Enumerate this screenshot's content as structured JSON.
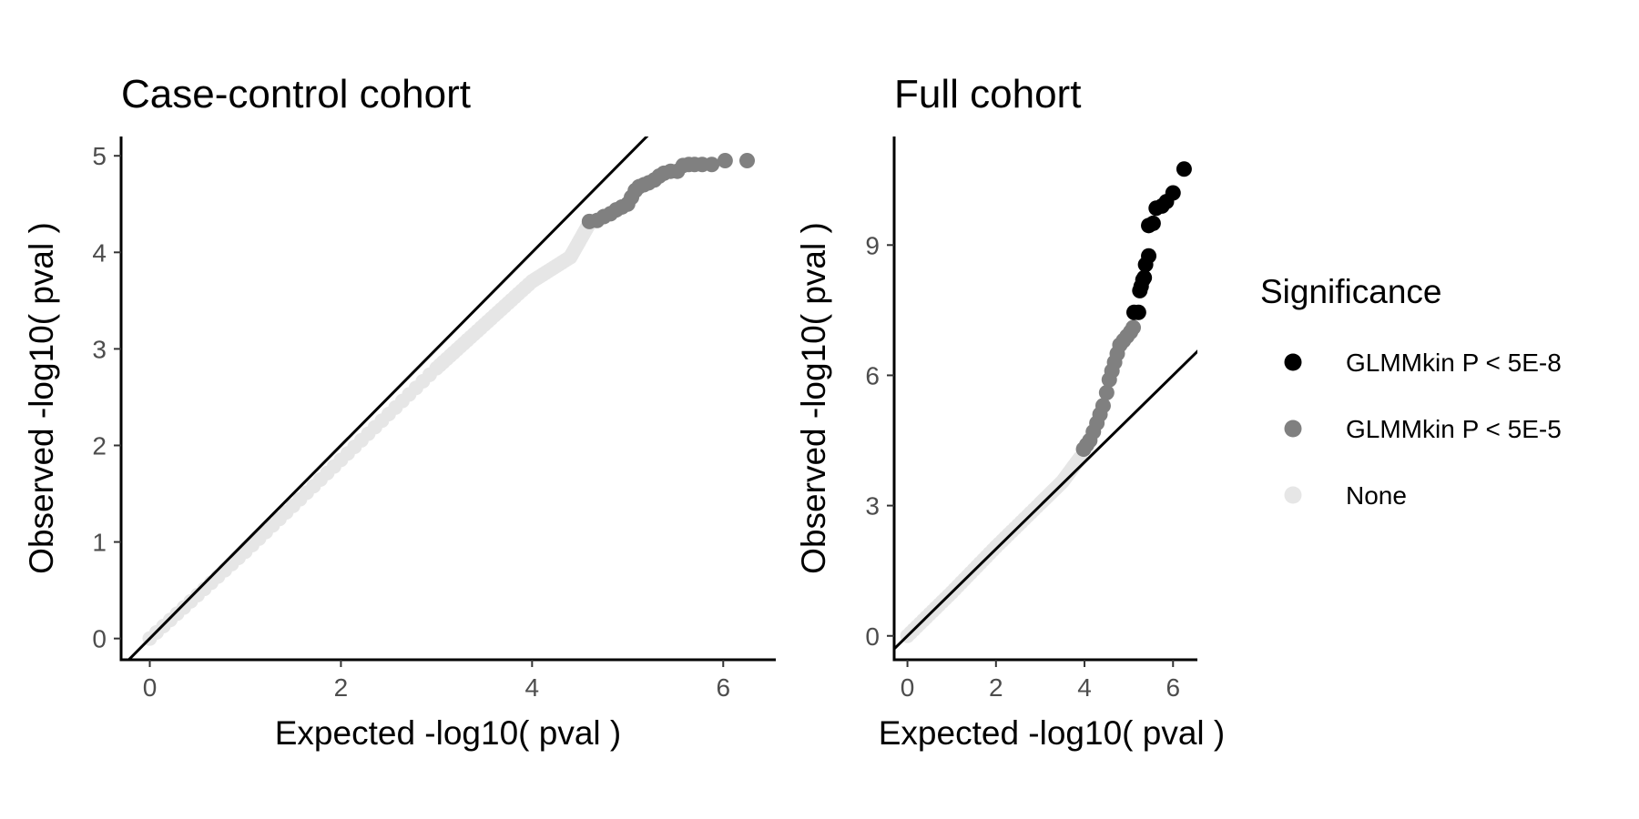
{
  "legend": {
    "title": "Significance",
    "entries": [
      {
        "label": "GLMMkin P < 5E-8",
        "color": "#000000"
      },
      {
        "label": "GLMMkin P < 5E-5",
        "color": "#808080"
      },
      {
        "label": "None",
        "color": "#e6e6e6"
      }
    ]
  },
  "chart_data": [
    {
      "type": "scatter",
      "title": "Case-control cohort",
      "xlabel": "Expected -log10( pval )",
      "ylabel": "Observed -log10( pval )",
      "xlim": [
        -0.3,
        6.55
      ],
      "ylim": [
        -0.22,
        5.2
      ],
      "xticks": [
        0,
        2,
        4,
        6
      ],
      "yticks": [
        0,
        1,
        2,
        3,
        4,
        5
      ],
      "reference_line": "y = x",
      "grid": false,
      "none_band": [
        [
          0.0,
          0.0
        ],
        [
          1.0,
          0.9
        ],
        [
          2.0,
          1.85
        ],
        [
          3.0,
          2.8
        ],
        [
          3.5,
          3.25
        ],
        [
          4.0,
          3.7
        ],
        [
          4.4,
          3.95
        ],
        [
          4.6,
          4.3
        ]
      ],
      "series": [
        {
          "name": "GLMMkin P < 5E-5",
          "color": "#808080",
          "points": [
            [
              4.6,
              4.32
            ],
            [
              4.68,
              4.33
            ],
            [
              4.75,
              4.37
            ],
            [
              4.82,
              4.4
            ],
            [
              4.88,
              4.44
            ],
            [
              4.94,
              4.47
            ],
            [
              5.0,
              4.5
            ],
            [
              5.04,
              4.57
            ],
            [
              5.08,
              4.64
            ],
            [
              5.12,
              4.68
            ],
            [
              5.17,
              4.7
            ],
            [
              5.22,
              4.72
            ],
            [
              5.28,
              4.75
            ],
            [
              5.33,
              4.79
            ],
            [
              5.38,
              4.82
            ],
            [
              5.45,
              4.84
            ],
            [
              5.52,
              4.84
            ],
            [
              5.58,
              4.9
            ],
            [
              5.64,
              4.91
            ],
            [
              5.7,
              4.91
            ],
            [
              5.78,
              4.91
            ],
            [
              5.88,
              4.91
            ],
            [
              6.02,
              4.95
            ],
            [
              6.25,
              4.95
            ]
          ]
        }
      ]
    },
    {
      "type": "scatter",
      "title": "Full cohort",
      "xlabel": "Expected -log10( pval )",
      "ylabel": "Observed -log10( pval )",
      "xlim": [
        -0.3,
        6.55
      ],
      "ylim": [
        -0.55,
        11.5
      ],
      "xticks": [
        0,
        2,
        4,
        6
      ],
      "yticks": [
        0,
        3,
        6,
        9
      ],
      "reference_line": "y = x",
      "grid": false,
      "none_band": [
        [
          0.0,
          0.0
        ],
        [
          1.0,
          1.0
        ],
        [
          2.0,
          2.05
        ],
        [
          3.0,
          3.05
        ],
        [
          3.5,
          3.55
        ],
        [
          3.9,
          4.1
        ]
      ],
      "series": [
        {
          "name": "GLMMkin P < 5E-5",
          "color": "#808080",
          "points": [
            [
              3.98,
              4.3
            ],
            [
              4.05,
              4.4
            ],
            [
              4.12,
              4.5
            ],
            [
              4.2,
              4.7
            ],
            [
              4.28,
              4.9
            ],
            [
              4.35,
              5.1
            ],
            [
              4.42,
              5.3
            ],
            [
              4.5,
              5.6
            ],
            [
              4.56,
              5.9
            ],
            [
              4.62,
              6.1
            ],
            [
              4.68,
              6.3
            ],
            [
              4.74,
              6.5
            ],
            [
              4.8,
              6.7
            ],
            [
              4.88,
              6.8
            ],
            [
              4.96,
              6.9
            ],
            [
              5.04,
              7.0
            ],
            [
              5.1,
              7.1
            ]
          ]
        },
        {
          "name": "GLMMkin P < 5E-8",
          "color": "#000000",
          "points": [
            [
              5.12,
              7.45
            ],
            [
              5.22,
              7.45
            ],
            [
              5.25,
              7.95
            ],
            [
              5.28,
              8.05
            ],
            [
              5.32,
              8.2
            ],
            [
              5.35,
              8.25
            ],
            [
              5.38,
              8.55
            ],
            [
              5.45,
              8.75
            ],
            [
              5.45,
              9.45
            ],
            [
              5.55,
              9.5
            ],
            [
              5.62,
              9.85
            ],
            [
              5.75,
              9.9
            ],
            [
              5.85,
              10.0
            ],
            [
              6.0,
              10.2
            ],
            [
              6.25,
              10.75
            ]
          ]
        }
      ]
    }
  ]
}
